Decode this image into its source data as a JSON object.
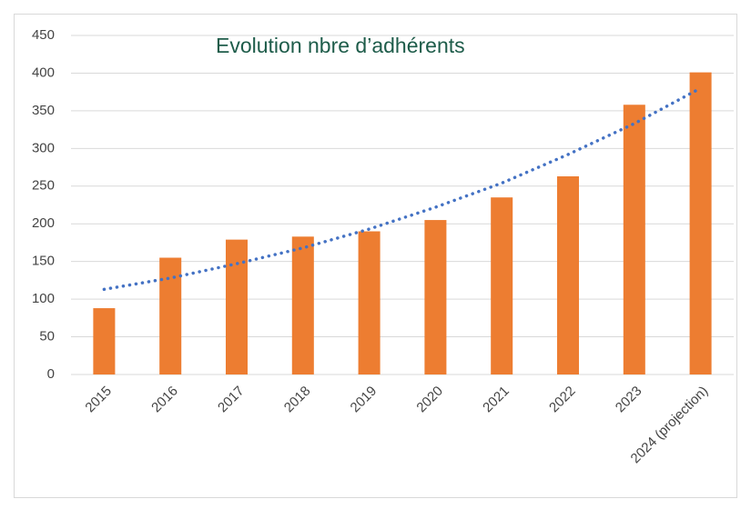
{
  "chart_data": {
    "type": "bar",
    "title": "Evolution nbre d’adhérents",
    "categories": [
      "2015",
      "2016",
      "2017",
      "2018",
      "2019",
      "2020",
      "2021",
      "2022",
      "2023",
      "2024 (projection)"
    ],
    "values": [
      88,
      155,
      179,
      183,
      190,
      205,
      235,
      263,
      358,
      401
    ],
    "color": "#ed7d31",
    "trendline": {
      "color": "#4472c4",
      "values": [
        113,
        128,
        147,
        168,
        193,
        222,
        254,
        292,
        333,
        380
      ]
    },
    "ylim": [
      0,
      450
    ],
    "yticks": [
      0,
      50,
      100,
      150,
      200,
      250,
      300,
      350,
      400,
      450
    ],
    "grid": true
  }
}
